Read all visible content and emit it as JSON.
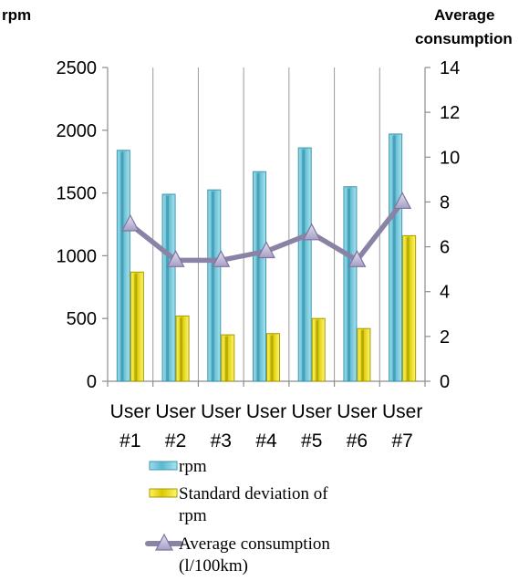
{
  "chart_data": {
    "type": "bar",
    "categories": [
      [
        "User",
        "#1"
      ],
      [
        "User",
        "#2"
      ],
      [
        "User",
        "#3"
      ],
      [
        "User",
        "#4"
      ],
      [
        "User",
        "#5"
      ],
      [
        "User",
        "#6"
      ],
      [
        "User",
        "#7"
      ]
    ],
    "y_left": {
      "title": "rpm",
      "lim": [
        0,
        2500
      ],
      "ticks": [
        "0",
        "500",
        "1000",
        "1500",
        "2000",
        "2500"
      ]
    },
    "y_right": {
      "title_lines": [
        "Average",
        "consumption"
      ],
      "lim": [
        0,
        14
      ],
      "ticks": [
        "0",
        "2",
        "4",
        "6",
        "8",
        "10",
        "12",
        "14"
      ]
    },
    "series": [
      {
        "name": "rpm",
        "type": "bar",
        "axis": "left",
        "color": "#6EC6DA",
        "values": [
          1840,
          1490,
          1525,
          1670,
          1860,
          1550,
          1970
        ]
      },
      {
        "name": "Standard deviation of rpm",
        "type": "bar",
        "axis": "left",
        "color": "#F2E600",
        "values": [
          870,
          520,
          370,
          380,
          500,
          420,
          1160
        ]
      },
      {
        "name": "Average consumption (l/100km)",
        "type": "line",
        "axis": "right",
        "color": "#8A83A5",
        "marker": "triangle",
        "values": [
          7.0,
          5.4,
          5.4,
          5.8,
          6.6,
          5.4,
          8.0
        ]
      }
    ],
    "legend": {
      "position": "bottom",
      "entries": [
        {
          "lines": [
            "rpm"
          ]
        },
        {
          "lines": [
            "Standard deviation of",
            "rpm"
          ]
        },
        {
          "lines": [
            "Average consumption",
            "(l/100km)"
          ]
        }
      ]
    },
    "grid": {
      "vertical_category_lines": true,
      "horizontal": false
    }
  }
}
